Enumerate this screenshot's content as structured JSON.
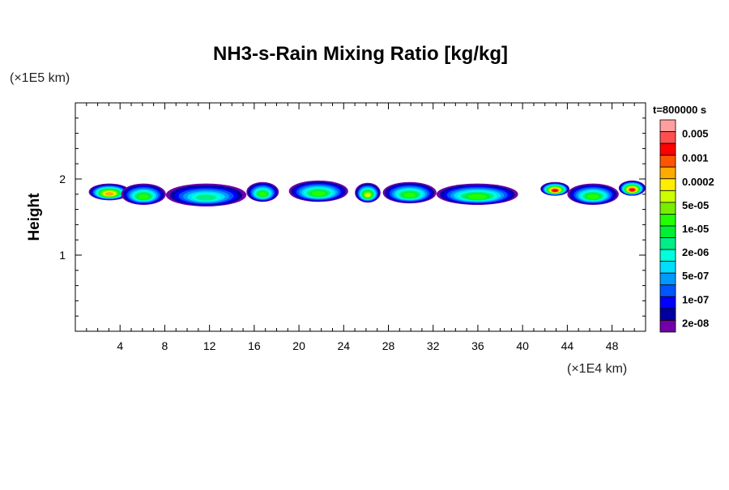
{
  "chart_data": {
    "type": "heatmap",
    "title": "NH3-s-Rain Mixing Ratio [kg/kg]",
    "xlabel": "",
    "ylabel": "Height",
    "x_unit": "(×1E4 km)",
    "y_unit": "(×1E5 km)",
    "time_label": "t=800000 s",
    "xlim": [
      0,
      51
    ],
    "ylim": [
      0,
      3
    ],
    "x_ticks": [
      "4",
      "8",
      "12",
      "16",
      "20",
      "24",
      "28",
      "32",
      "36",
      "40",
      "44",
      "48"
    ],
    "x_tick_values": [
      4,
      8,
      12,
      16,
      20,
      24,
      28,
      32,
      36,
      40,
      44,
      48
    ],
    "y_ticks": [
      "1",
      "2"
    ],
    "y_tick_values": [
      1,
      2
    ],
    "colorbar": {
      "labels": [
        "0.005",
        "0.001",
        "0.0002",
        "5e-05",
        "1e-05",
        "2e-06",
        "5e-07",
        "1e-07",
        "2e-08"
      ],
      "colors": [
        "#ff9f9f",
        "#ff4f4f",
        "#ff0000",
        "#ff5500",
        "#ffaa00",
        "#ffee00",
        "#ccff00",
        "#77ee00",
        "#22ff00",
        "#00ee33",
        "#00ee88",
        "#00ffdd",
        "#00ddff",
        "#0099ff",
        "#0055ff",
        "#0000ff",
        "#0000a0",
        "#7000a8"
      ]
    },
    "cells": [
      {
        "x0": 1.2,
        "x1": 4.9,
        "y": 1.83,
        "h": 0.22,
        "peak": "5e-07"
      },
      {
        "x0": 4.1,
        "x1": 8.1,
        "y": 1.8,
        "h": 0.28,
        "peak": "1e-05"
      },
      {
        "x0": 8.1,
        "x1": 15.3,
        "y": 1.79,
        "h": 0.3,
        "peak": "5e-05"
      },
      {
        "x0": 15.3,
        "x1": 18.2,
        "y": 1.83,
        "h": 0.26,
        "peak": "1e-05"
      },
      {
        "x0": 19.1,
        "x1": 24.4,
        "y": 1.84,
        "h": 0.28,
        "peak": "1e-05"
      },
      {
        "x0": 25,
        "x1": 27.3,
        "y": 1.82,
        "h": 0.26,
        "peak": "2e-06"
      },
      {
        "x0": 27.5,
        "x1": 32.3,
        "y": 1.82,
        "h": 0.28,
        "peak": "1e-05"
      },
      {
        "x0": 32.3,
        "x1": 39.6,
        "y": 1.8,
        "h": 0.28,
        "peak": "1e-05"
      },
      {
        "x0": 41.6,
        "x1": 44.2,
        "y": 1.87,
        "h": 0.18,
        "peak": "1e-07"
      },
      {
        "x0": 44,
        "x1": 48.6,
        "y": 1.8,
        "h": 0.28,
        "peak": "1e-05"
      },
      {
        "x0": 48.6,
        "x1": 51,
        "y": 1.88,
        "h": 0.2,
        "peak": "1e-07"
      }
    ]
  }
}
